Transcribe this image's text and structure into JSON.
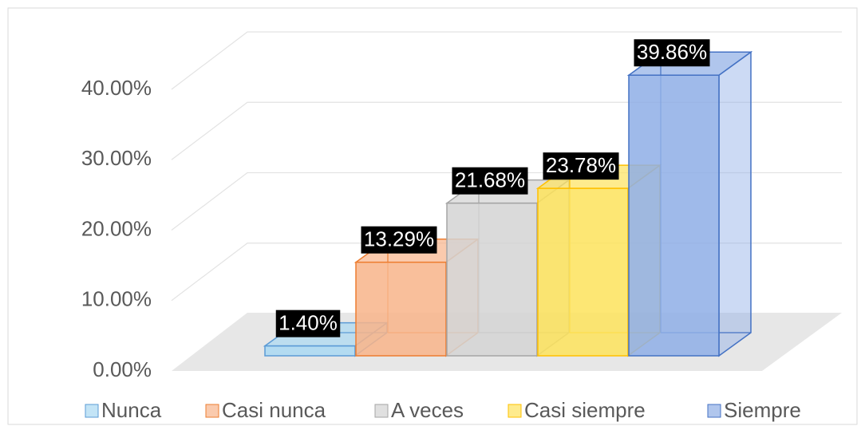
{
  "chart_data": {
    "type": "bar3d",
    "categories": [
      "Nunca",
      "Casi nunca",
      "A veces",
      "Casi siempre",
      "Siempre"
    ],
    "series": [
      {
        "name": "Porcentaje",
        "colors": [
          "#a9d8f2",
          "#f8b48a",
          "#d3d3d3",
          "#fde35c",
          "#8eaee6"
        ],
        "edges": [
          "#5b9bd5",
          "#ed7d31",
          "#a5a5a5",
          "#ffc000",
          "#4472c4"
        ],
        "values": [
          1.4,
          13.29,
          21.68,
          23.78,
          39.86
        ],
        "value_labels": [
          "1.40%",
          "13.29%",
          "21.68%",
          "23.78%",
          "39.86%"
        ]
      }
    ],
    "ylim": [
      0,
      40
    ],
    "yticks": [
      {
        "value": 0,
        "label": "0.00%"
      },
      {
        "value": 10,
        "label": "10.00%"
      },
      {
        "value": 20,
        "label": "20.00%"
      },
      {
        "value": 30,
        "label": "30.00%"
      },
      {
        "value": 40,
        "label": "40.00%"
      }
    ],
    "grid": true,
    "legend": "bottom"
  }
}
